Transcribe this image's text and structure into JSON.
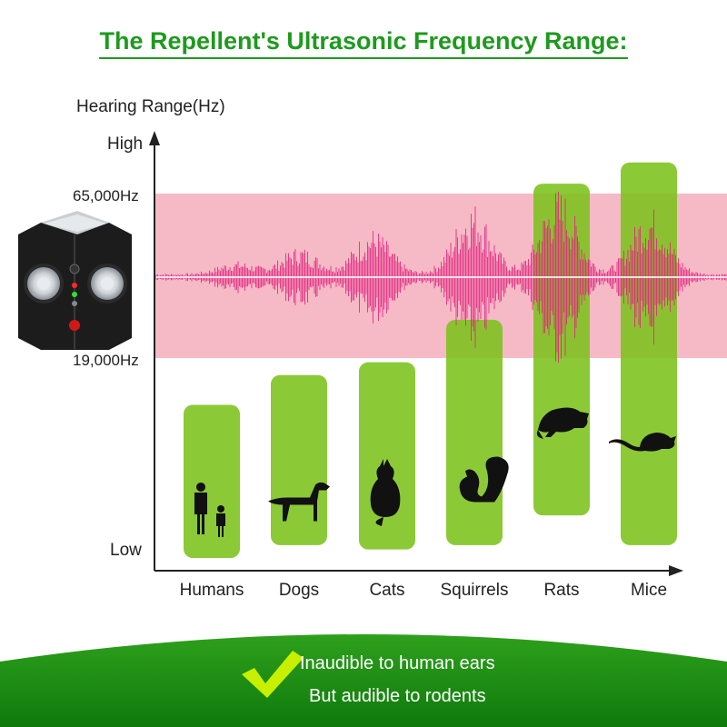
{
  "title": "The Repellent's Ultrasonic Frequency Range:",
  "colors": {
    "title": "#1e9a1e",
    "band": "#f6b9c6",
    "bar": "#7cc11b",
    "wave": "#e0267f",
    "footer": "#1a8a12",
    "check": "#c6f000"
  },
  "chart_data": {
    "type": "bar",
    "title": "The Repellent's Ultrasonic Frequency Range:",
    "ylabel": "Hearing Range(Hz)",
    "y_scale_labels": {
      "top": "High",
      "bottom": "Low"
    },
    "ultrasonic_band": {
      "low": "19,000Hz",
      "high": "65,000Hz"
    },
    "categories": [
      "Humans",
      "Dogs",
      "Cats",
      "Squirrels",
      "Rats",
      "Mice"
    ],
    "icons": [
      "humans-icon",
      "dog-icon",
      "cat-icon",
      "squirrel-icon",
      "rat-icon",
      "mouse-icon"
    ],
    "ranges_fraction_of_axis": [
      {
        "low": 0.03,
        "high": 0.39
      },
      {
        "low": 0.06,
        "high": 0.46
      },
      {
        "low": 0.05,
        "high": 0.49
      },
      {
        "low": 0.06,
        "high": 0.59
      },
      {
        "low": 0.13,
        "high": 0.91
      },
      {
        "low": 0.06,
        "high": 0.96
      }
    ]
  },
  "footer": {
    "line1": "Inaudible to human ears",
    "line2": "But audible to rodents"
  }
}
